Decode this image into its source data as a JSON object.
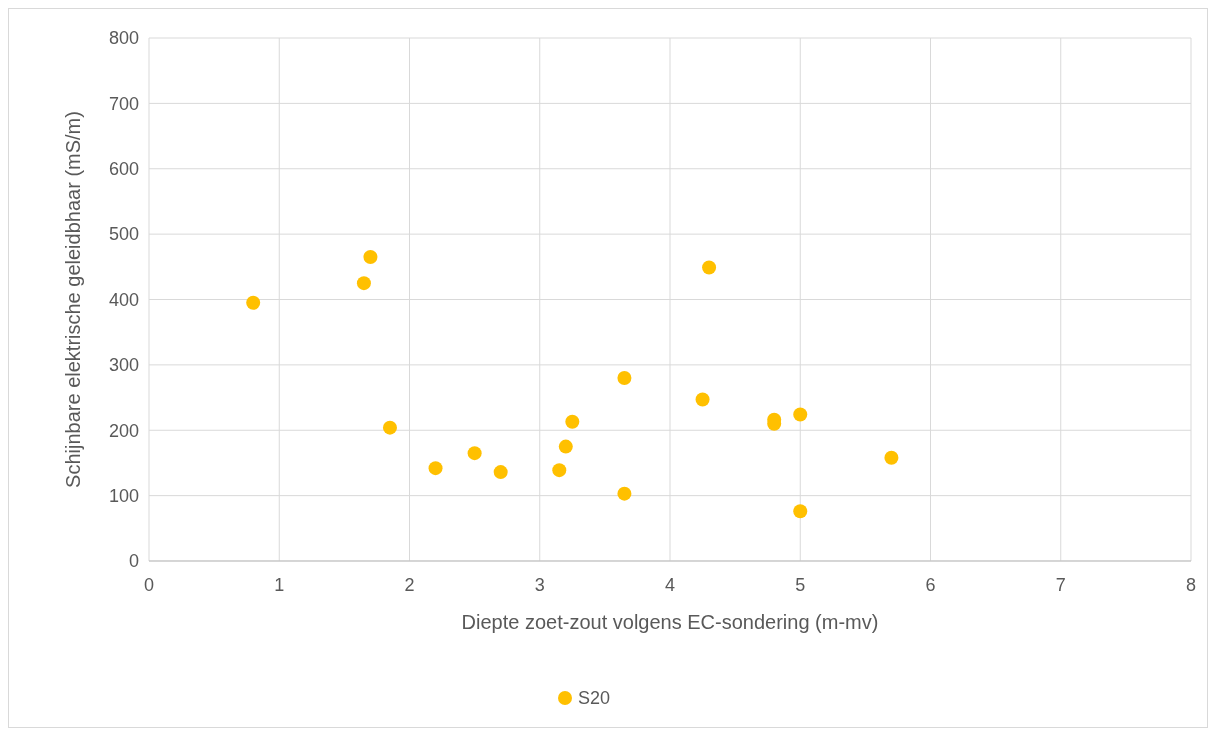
{
  "chart_data": {
    "type": "scatter",
    "xlabel": "Diepte zoet-zout volgens EC-sondering (m-mv)",
    "ylabel": "Schijnbare elektrische geleidbhaar (mS/m)",
    "x": [
      0.8,
      1.7,
      1.65,
      1.85,
      2.2,
      2.5,
      2.7,
      3.15,
      3.2,
      3.25,
      3.65,
      3.65,
      4.25,
      4.3,
      4.8,
      4.8,
      5.0,
      5.0,
      5.7
    ],
    "series": [
      {
        "name": "S20",
        "color": "#ffc000",
        "values": [
          395,
          465,
          425,
          204,
          142,
          165,
          136,
          139,
          175,
          213,
          280,
          103,
          247,
          449,
          216,
          210,
          224,
          76,
          158
        ]
      }
    ],
    "xlim": [
      0,
      8
    ],
    "xticks": [
      0,
      1,
      2,
      3,
      4,
      5,
      6,
      7,
      8
    ],
    "ylim": [
      0,
      800
    ],
    "yticks": [
      0,
      100,
      200,
      300,
      400,
      500,
      600,
      700,
      800
    ],
    "grid": true,
    "legend": "bottom",
    "marker": "circle"
  }
}
